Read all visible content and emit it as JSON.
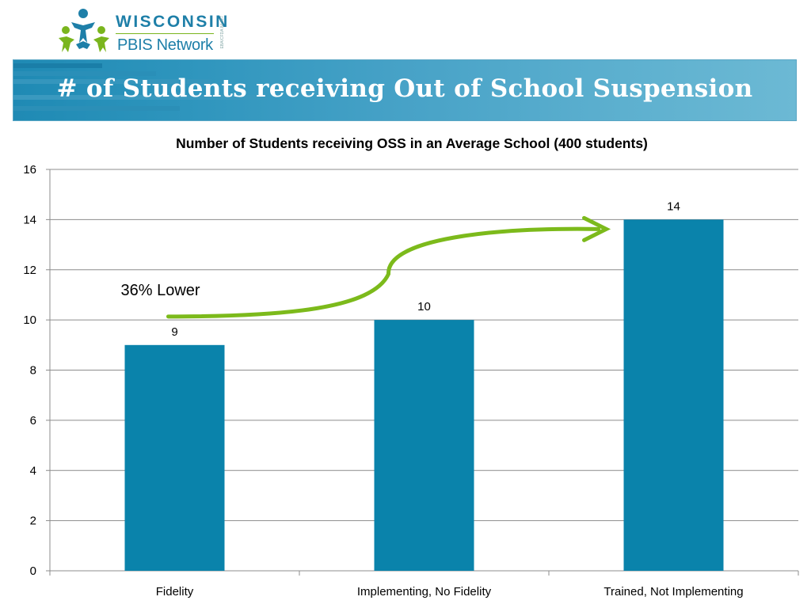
{
  "header": {
    "logo": {
      "line1": "WISCONSIN",
      "line2": "PBIS Network",
      "tiny_text": "EBA/CFDA 84.027",
      "colors": {
        "blue": "#1e7fa8",
        "green": "#7ab51d"
      }
    },
    "banner_title": "# of Students receiving Out of School Suspension"
  },
  "chart_data": {
    "type": "bar",
    "title": "Number of Students receiving OSS in an Average School (400 students)",
    "categories": [
      "Fidelity",
      "Implementing, No Fidelity",
      "Trained, Not Implementing"
    ],
    "values": [
      9,
      10,
      14
    ],
    "data_labels": [
      "9",
      "10",
      "14"
    ],
    "ylim": [
      0,
      16
    ],
    "yticks": [
      0,
      2,
      4,
      6,
      8,
      10,
      12,
      14,
      16
    ],
    "xlabel": "",
    "ylabel": "",
    "grid": true,
    "legend": "none",
    "bar_color": "#0a83ab",
    "annotation": {
      "text": "36% Lower",
      "arrow_color": "#7cba1b",
      "arrow_from_category": "Fidelity",
      "arrow_to_category": "Trained, Not Implementing"
    }
  }
}
